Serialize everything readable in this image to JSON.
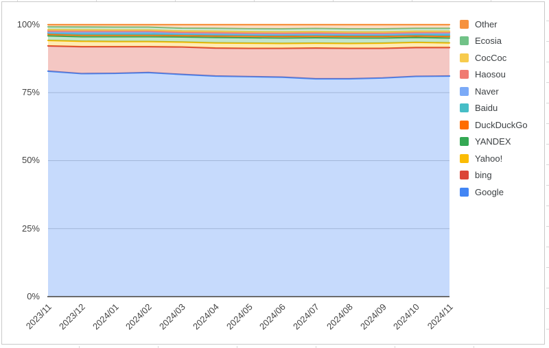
{
  "chart_data": {
    "type": "area",
    "stacked": true,
    "percent_stacked": true,
    "title": "",
    "categories": [
      "2023/11",
      "2023/12",
      "2024/01",
      "2024/02",
      "2024/03",
      "2024/04",
      "2024/05",
      "2024/06",
      "2024/07",
      "2024/08",
      "2024/09",
      "2024/10",
      "2024/11"
    ],
    "series": [
      {
        "name": "Google",
        "color": "#4285F4",
        "values": [
          82.9,
          82.0,
          82.1,
          82.4,
          81.7,
          81.1,
          80.9,
          80.7,
          80.1,
          80.1,
          80.4,
          81.0,
          81.1
        ]
      },
      {
        "name": "bing",
        "color": "#DB4437",
        "values": [
          9.3,
          9.9,
          9.8,
          9.5,
          10.1,
          10.3,
          10.4,
          10.6,
          11.3,
          11.2,
          10.9,
          10.6,
          10.5
        ]
      },
      {
        "name": "Yahoo!",
        "color": "#FBBC04",
        "values": [
          2.0,
          2.0,
          1.9,
          1.9,
          1.8,
          1.9,
          1.9,
          1.8,
          1.8,
          1.8,
          1.9,
          1.9,
          1.7
        ]
      },
      {
        "name": "YANDEX",
        "color": "#34A853",
        "values": [
          1.7,
          1.7,
          1.8,
          1.8,
          1.9,
          2.0,
          2.0,
          2.0,
          2.0,
          2.0,
          1.9,
          1.8,
          1.8
        ]
      },
      {
        "name": "DuckDuckGo",
        "color": "#FF6D01",
        "values": [
          0.6,
          0.6,
          0.6,
          0.6,
          0.6,
          0.6,
          0.6,
          0.6,
          0.6,
          0.6,
          0.6,
          0.6,
          0.6
        ]
      },
      {
        "name": "Baidu",
        "color": "#46BDC6",
        "values": [
          0.45,
          0.4,
          0.4,
          0.4,
          0.4,
          0.45,
          0.45,
          0.5,
          0.5,
          0.5,
          0.5,
          0.5,
          0.5
        ]
      },
      {
        "name": "Naver",
        "color": "#7BAAF7",
        "values": [
          0.25,
          0.55,
          0.55,
          0.6,
          0.3,
          0.3,
          0.3,
          0.3,
          0.3,
          0.3,
          0.3,
          0.35,
          0.55
        ]
      },
      {
        "name": "Haosou",
        "color": "#F07B72",
        "values": [
          0.5,
          0.5,
          0.5,
          0.45,
          0.45,
          0.45,
          0.4,
          0.4,
          0.4,
          0.4,
          0.4,
          0.4,
          0.4
        ]
      },
      {
        "name": "CocCoc",
        "color": "#F7CB4D",
        "values": [
          0.5,
          0.5,
          0.45,
          0.45,
          0.45,
          0.5,
          0.5,
          0.5,
          0.5,
          0.45,
          0.45,
          0.45,
          0.45
        ]
      },
      {
        "name": "Ecosia",
        "color": "#71C287",
        "values": [
          1.0,
          1.0,
          1.0,
          1.0,
          1.0,
          1.05,
          1.05,
          1.05,
          1.1,
          1.1,
          1.1,
          1.05,
          1.05
        ]
      },
      {
        "name": "Other",
        "color": "#F6923E",
        "values": [
          0.8,
          0.85,
          0.9,
          0.9,
          1.3,
          1.35,
          1.5,
          1.55,
          1.4,
          1.55,
          1.55,
          1.35,
          1.35
        ]
      }
    ],
    "legend_position": "right",
    "legend_order_top_to_bottom": [
      "Other",
      "Ecosia",
      "CocCoc",
      "Haosou",
      "Naver",
      "Baidu",
      "DuckDuckGo",
      "YANDEX",
      "Yahoo!",
      "bing",
      "Google"
    ],
    "y_tick_labels": [
      "0%",
      "25%",
      "50%",
      "75%",
      "100%"
    ],
    "ylim": [
      0,
      100
    ],
    "grid": true,
    "fill_opacity": 0.3,
    "xlabel": "",
    "ylabel": ""
  }
}
